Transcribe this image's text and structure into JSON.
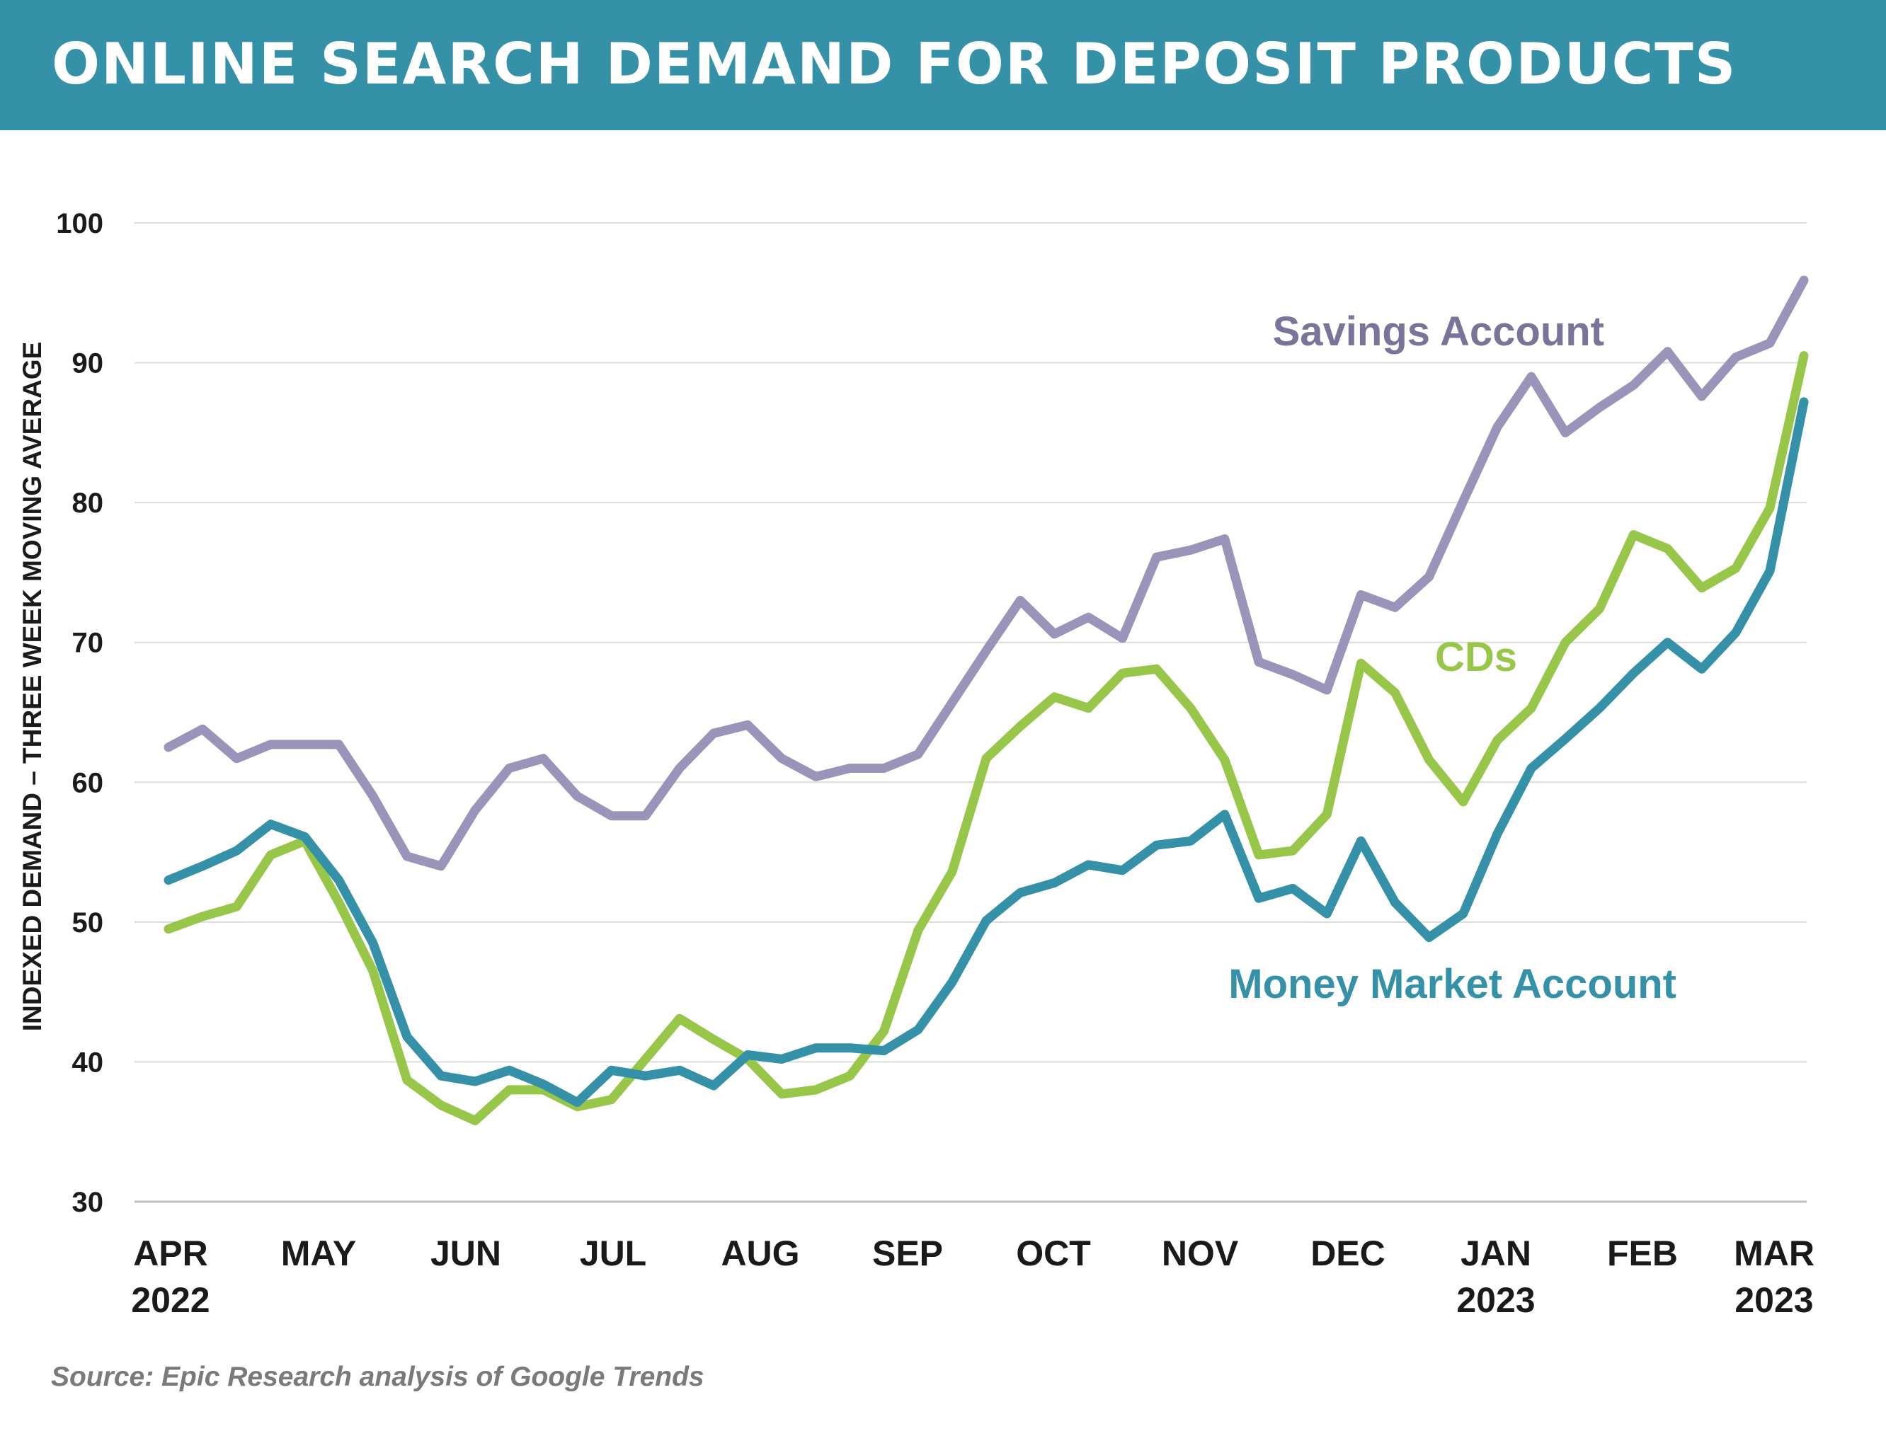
{
  "header": {
    "title": "ONLINE SEARCH DEMAND FOR DEPOSIT PRODUCTS",
    "background_color": "#3591a8"
  },
  "source": "Source: Epic Research analysis of Google Trends",
  "chart_data": {
    "type": "line",
    "title": "ONLINE SEARCH DEMAND FOR DEPOSIT PRODUCTS",
    "ylabel": "INDEXED DEMAND – THREE WEEK MOVING AVERAGE",
    "xlabel": "",
    "ylim": [
      30,
      100
    ],
    "yticks": [
      30,
      40,
      50,
      60,
      70,
      80,
      90,
      100
    ],
    "grid": true,
    "x_tick_labels": [
      {
        "line1": "APR",
        "line2": "2022"
      },
      {
        "line1": "MAY",
        "line2": ""
      },
      {
        "line1": "JUN",
        "line2": ""
      },
      {
        "line1": "JUL",
        "line2": ""
      },
      {
        "line1": "AUG",
        "line2": ""
      },
      {
        "line1": "SEP",
        "line2": ""
      },
      {
        "line1": "OCT",
        "line2": ""
      },
      {
        "line1": "NOV",
        "line2": ""
      },
      {
        "line1": "DEC",
        "line2": ""
      },
      {
        "line1": "JAN",
        "line2": "2023"
      },
      {
        "line1": "FEB",
        "line2": ""
      },
      {
        "line1": "MAR",
        "line2": "2023"
      }
    ],
    "series": [
      {
        "name": "Savings Account",
        "color": "#9b93b9",
        "label_color": "#7b7399",
        "values": [
          62.5,
          63.8,
          61.7,
          62.7,
          62.7,
          62.7,
          59.0,
          54.7,
          54.0,
          58.0,
          61.0,
          61.7,
          59.0,
          57.6,
          57.6,
          61.0,
          63.5,
          64.1,
          61.7,
          60.4,
          61.0,
          61.0,
          62.0,
          65.7,
          69.4,
          73.0,
          70.6,
          71.8,
          70.3,
          76.1,
          76.6,
          77.4,
          68.6,
          67.7,
          66.6,
          73.4,
          72.5,
          74.7,
          80.1,
          85.4,
          89.0,
          85.0,
          86.8,
          88.4,
          90.8,
          87.6,
          90.4,
          91.4,
          95.9
        ]
      },
      {
        "name": "CDs",
        "color": "#98c649",
        "label_color": "#98c649",
        "values": [
          49.5,
          50.4,
          51.1,
          54.8,
          55.8,
          51.4,
          46.5,
          38.7,
          36.9,
          35.8,
          38.0,
          38.0,
          36.8,
          37.3,
          40.2,
          43.1,
          41.6,
          40.2,
          37.7,
          38.0,
          39.0,
          42.2,
          49.4,
          53.6,
          61.7,
          64.0,
          66.1,
          65.3,
          67.8,
          68.1,
          65.3,
          61.6,
          54.8,
          55.1,
          57.7,
          68.5,
          66.4,
          61.6,
          58.6,
          63.0,
          65.3,
          70.0,
          72.4,
          77.7,
          76.7,
          73.9,
          75.3,
          79.6,
          90.5
        ]
      },
      {
        "name": "Money Market Account",
        "color": "#3591a8",
        "label_color": "#3591a8",
        "values": [
          53.0,
          54.0,
          55.1,
          57.0,
          56.1,
          53.0,
          48.5,
          41.8,
          39.0,
          38.6,
          39.4,
          38.4,
          37.1,
          39.4,
          39.0,
          39.4,
          38.3,
          40.5,
          40.2,
          41.0,
          41.0,
          40.8,
          42.3,
          45.7,
          50.1,
          52.1,
          52.8,
          54.1,
          53.7,
          55.5,
          55.8,
          57.7,
          51.7,
          52.4,
          50.6,
          55.8,
          51.4,
          48.9,
          50.6,
          56.3,
          61.0,
          63.1,
          65.3,
          67.8,
          70.0,
          68.1,
          70.7,
          75.1,
          87.2
        ]
      }
    ]
  }
}
